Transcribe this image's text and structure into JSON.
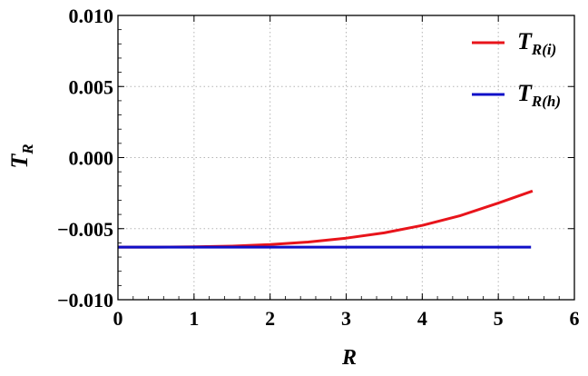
{
  "chart_data": {
    "type": "line",
    "xlabel": "R",
    "ylabel": {
      "base": "T",
      "sub": "R"
    },
    "xlim": [
      0,
      6
    ],
    "ylim": [
      -0.01,
      0.01
    ],
    "x_ticks": [
      0,
      1,
      2,
      3,
      4,
      5,
      6
    ],
    "x_tick_labels": [
      "0",
      "1",
      "2",
      "3",
      "4",
      "5",
      "6"
    ],
    "y_ticks": [
      -0.01,
      -0.005,
      0.0,
      0.005,
      0.01
    ],
    "y_tick_labels": [
      "−0.010",
      "−0.005",
      "0.000",
      "0.005",
      "0.010"
    ],
    "grid": true,
    "legend_position": "top-right",
    "series": [
      {
        "name": "T_R(i)",
        "label_base": "T",
        "label_sub": "R(i)",
        "color": "#e8141b",
        "x": [
          0,
          0.5,
          1,
          1.5,
          2,
          2.5,
          3,
          3.5,
          4,
          4.5,
          5,
          5.45
        ],
        "y": [
          -0.0063,
          -0.0063,
          -0.00628,
          -0.00623,
          -0.00612,
          -0.00594,
          -0.00567,
          -0.0053,
          -0.00477,
          -0.00408,
          -0.0032,
          -0.00235
        ]
      },
      {
        "name": "T_R(h)",
        "label_base": "T",
        "label_sub": "R(h)",
        "color": "#1010c8",
        "x": [
          0,
          5.43
        ],
        "y": [
          -0.0063,
          -0.0063
        ]
      }
    ]
  }
}
